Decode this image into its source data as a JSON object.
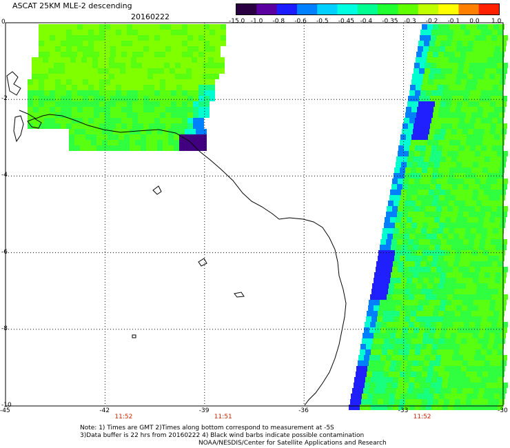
{
  "header": {
    "title": "ASCAT 25KM MLE-2 descending",
    "date": "20160222"
  },
  "colorbar": {
    "labels": [
      "-15.0",
      "-1.0",
      "-0.8",
      "-0.6",
      "-0.5",
      "-0.45",
      "-0.4",
      "-0.35",
      "-0.3",
      "-0.2",
      "-0.1",
      "0.0",
      "1.0"
    ],
    "colors": [
      "#2a0040",
      "#5a00a0",
      "#1c1cff",
      "#0080ff",
      "#00d0ff",
      "#00ffe0",
      "#00ff90",
      "#20ff30",
      "#60ff00",
      "#c0ff00",
      "#ffff00",
      "#ff8000",
      "#ff2000"
    ]
  },
  "map": {
    "lon_ticks": [
      "-45",
      "-42",
      "-39",
      "-36",
      "-33",
      "-30"
    ],
    "lat_ticks": [
      "0",
      "-2",
      "-4",
      "-6",
      "-8",
      "-10"
    ],
    "lon_range": [
      -45,
      -30
    ],
    "lat_range": [
      -10,
      0
    ],
    "time_labels": [
      {
        "lon": -42,
        "text": "11:52"
      },
      {
        "lon": -39,
        "text": "11:51"
      },
      {
        "lon": -33,
        "text": "11:52"
      }
    ],
    "swath_colors": [
      "#7fff00",
      "#58ff10",
      "#30ff40",
      "#18ff80",
      "#00ffd0",
      "#0080ff",
      "#2020ff",
      "#400080"
    ]
  },
  "notes": {
    "line1": "Note: 1) Times are GMT 2)Times along bottom correspond to measurement at -5S",
    "line2": "3)Data buffer is 22 hrs from 20160222 4) Black wind barbs indicate possible contamination",
    "credit": "NOAA/NESDIS/Center for Satellite Applications and Research"
  }
}
